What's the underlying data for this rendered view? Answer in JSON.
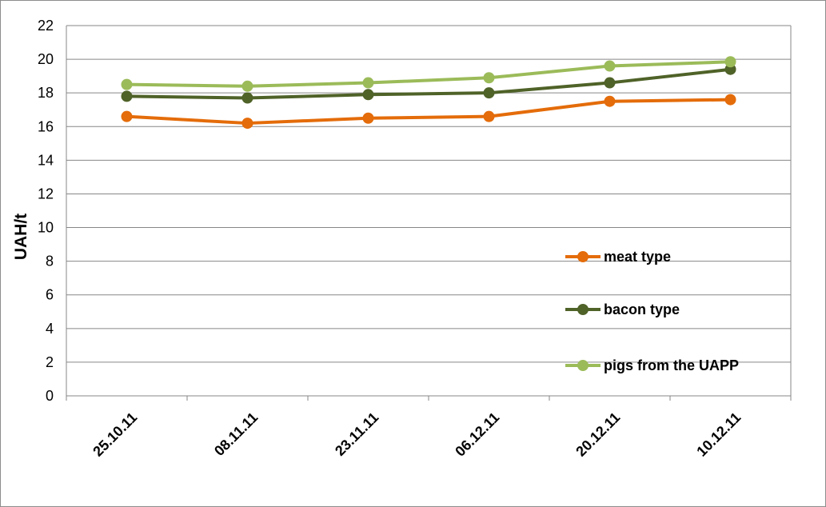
{
  "chart_data": {
    "type": "line",
    "title": "",
    "xlabel": "",
    "ylabel": "UAH/t",
    "categories": [
      "25.10.11",
      "08.11.11",
      "23.11.11",
      "06.12.11",
      "20.12.11",
      "10.12.11"
    ],
    "ylim": [
      0,
      22
    ],
    "yticks": [
      0,
      2,
      4,
      6,
      8,
      10,
      12,
      14,
      16,
      18,
      20,
      22
    ],
    "grid": true,
    "legend_position": "right",
    "series": [
      {
        "name": "meat type",
        "color": "#E46C0A",
        "values": [
          16.6,
          16.2,
          16.5,
          16.6,
          17.5,
          17.6
        ]
      },
      {
        "name": "bacon type",
        "color": "#4F6228",
        "values": [
          17.8,
          17.7,
          17.9,
          18.0,
          18.6,
          19.4
        ]
      },
      {
        "name": "pigs from the UAPP",
        "color": "#9BBB59",
        "values": [
          18.5,
          18.4,
          18.6,
          18.9,
          19.6,
          19.85
        ]
      }
    ]
  }
}
